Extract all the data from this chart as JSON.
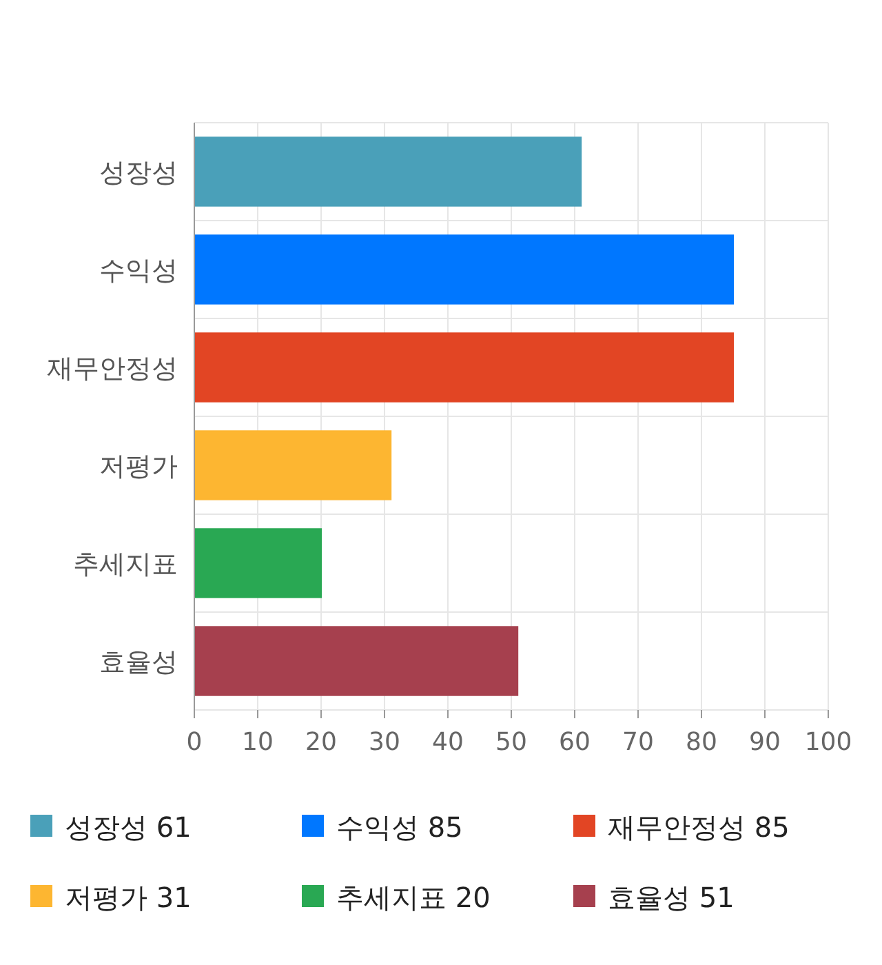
{
  "chart_data": {
    "type": "bar",
    "orientation": "horizontal",
    "categories": [
      "성장성",
      "수익성",
      "재무안정성",
      "저평가",
      "추세지표",
      "효율성"
    ],
    "series": [
      {
        "name": "성장성 61",
        "color": "#4aa0b9",
        "values": [
          61,
          null,
          null,
          null,
          null,
          null
        ]
      },
      {
        "name": "수익성 85",
        "color": "#0077ff",
        "values": [
          null,
          85,
          null,
          null,
          null,
          null
        ]
      },
      {
        "name": "재무안정성 85",
        "color": "#e24524",
        "values": [
          null,
          null,
          85,
          null,
          null,
          null
        ]
      },
      {
        "name": "저평가 31",
        "color": "#fdb631",
        "values": [
          null,
          null,
          null,
          31,
          null,
          null
        ]
      },
      {
        "name": "추세지표 20",
        "color": "#29a853",
        "values": [
          null,
          null,
          null,
          null,
          20,
          null
        ]
      },
      {
        "name": "효율성 51",
        "color": "#a6404e",
        "values": [
          null,
          null,
          null,
          null,
          null,
          51
        ]
      }
    ],
    "xlim": [
      0,
      100
    ],
    "xticks": [
      0,
      10,
      20,
      30,
      40,
      50,
      60,
      70,
      80,
      90,
      100
    ],
    "grid": true,
    "legend": "bottom"
  }
}
